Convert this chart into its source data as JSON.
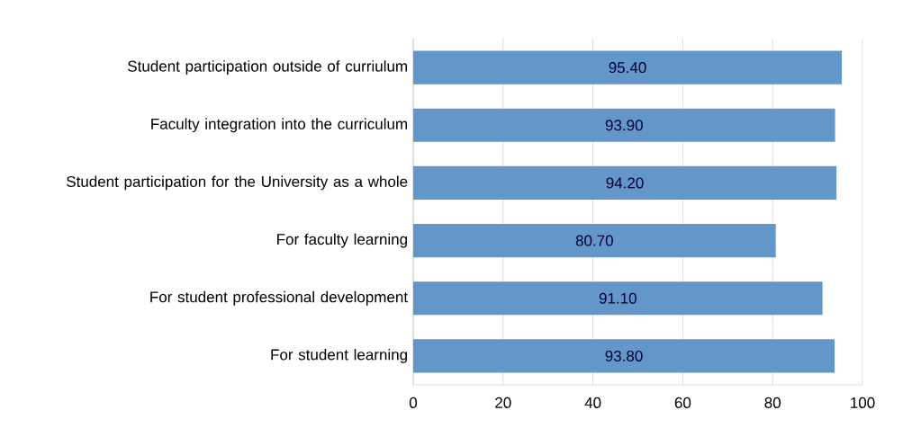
{
  "chart_data": {
    "type": "bar",
    "orientation": "horizontal",
    "categories": [
      "Student participation outside of curriulum",
      "Faculty integration into the curriculum",
      "Student participation for the University as a whole",
      "For faculty learning",
      "For student professional development",
      "For student learning"
    ],
    "values": [
      95.4,
      93.9,
      94.2,
      80.7,
      91.1,
      93.8
    ],
    "value_labels": [
      "95.40",
      "93.90",
      "94.20",
      "80.70",
      "91.10",
      "93.80"
    ],
    "color": "#6396c9",
    "xlim": [
      0,
      100
    ],
    "xticks": [
      0,
      20,
      40,
      60,
      80,
      100
    ],
    "grid": "x"
  }
}
